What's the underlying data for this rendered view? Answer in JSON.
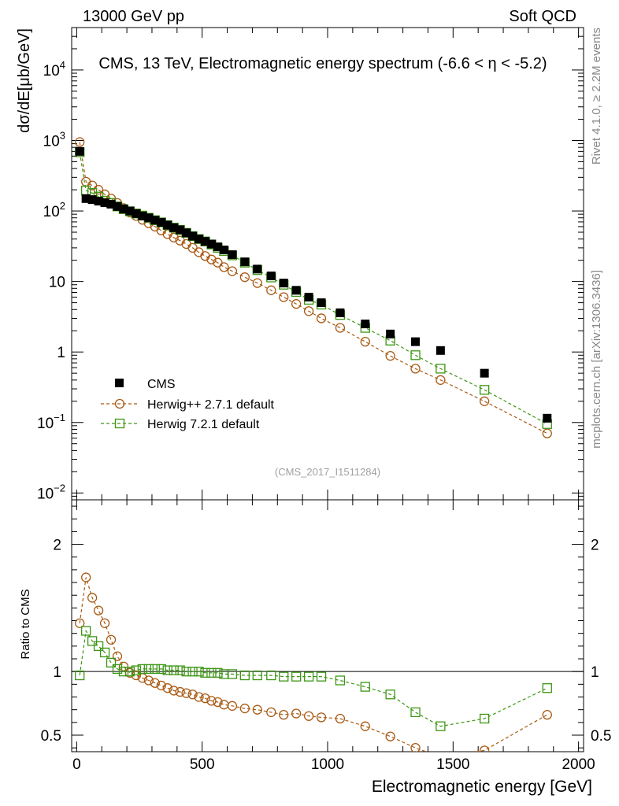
{
  "header": {
    "left": "13000 GeV pp",
    "right": "Soft QCD"
  },
  "side": {
    "top": "Rivet 4.1.0, ≥ 2.2M events",
    "bottom": "mcplots.cern.ch [arXiv:1306.3436]"
  },
  "colors": {
    "cms": "#000000",
    "herwigpp": "#a85a14",
    "herwig7": "#3c9614",
    "watermark": "#a0a0a0"
  },
  "chart_data": [
    {
      "type": "scatter",
      "title": "CMS, 13 TeV, Electromagnetic energy spectrum (-6.6 < η < -5.2)",
      "xlabel": "Electromagnetic energy [GeV]",
      "ylabel": "dσ/dE[μb/GeV]",
      "yscale": "log",
      "xlim": [
        -20,
        2020
      ],
      "ylim": [
        0.008,
        40000
      ],
      "xticks": [
        0,
        500,
        1000,
        1500,
        2000
      ],
      "yticks": [
        {
          "value": 10000,
          "base": "10",
          "exp": "4"
        },
        {
          "value": 1000,
          "base": "10",
          "exp": "3"
        },
        {
          "value": 100,
          "base": "10",
          "exp": "2"
        },
        {
          "value": 10,
          "base": "10",
          "exp": ""
        },
        {
          "value": 1,
          "base": "1",
          "exp": ""
        },
        {
          "value": 0.1,
          "base": "10",
          "exp": "−1"
        },
        {
          "value": 0.01,
          "base": "10",
          "exp": "−2"
        }
      ],
      "watermark": "(CMS_2017_I1511284)",
      "legend_position": "lower-left",
      "x": [
        12,
        37,
        62,
        87,
        112,
        137,
        162,
        187,
        212,
        237,
        262,
        287,
        312,
        337,
        362,
        387,
        412,
        437,
        462,
        487,
        512,
        537,
        562,
        587,
        620,
        670,
        720,
        775,
        825,
        875,
        925,
        975,
        1050,
        1150,
        1250,
        1350,
        1450,
        1625,
        1875
      ],
      "series": [
        {
          "name": "CMS",
          "marker": "filled-square",
          "values": [
            700,
            150,
            145,
            138,
            131,
            125,
            116,
            107,
            100,
            92,
            85,
            80,
            74,
            69,
            63,
            58,
            54,
            49,
            44,
            40,
            37,
            34,
            31,
            28,
            24,
            19,
            15,
            12,
            9.5,
            7.5,
            6.0,
            5.0,
            3.6,
            2.5,
            1.8,
            1.4,
            1.05,
            0.5,
            0.115
          ]
        },
        {
          "name": "Herwig++ 2.7.1 default",
          "marker": "open-circle",
          "values": [
            950,
            260,
            230,
            200,
            172,
            150,
            130,
            110,
            95,
            85,
            75,
            67,
            60,
            53,
            47,
            42,
            38,
            34,
            30,
            26,
            23,
            20.5,
            18.5,
            16,
            14,
            11.5,
            9.5,
            7.5,
            6.0,
            4.8,
            3.8,
            3.0,
            2.2,
            1.4,
            0.88,
            0.58,
            0.4,
            0.2,
            0.07
          ]
        },
        {
          "name": "Herwig 7.2.1 default",
          "marker": "open-square",
          "values": [
            680,
            195,
            180,
            160,
            140,
            130,
            116,
            106,
            99,
            92,
            86,
            80,
            74,
            69,
            63,
            58,
            54,
            49,
            44,
            40,
            37,
            33.5,
            30,
            27,
            23.5,
            18.5,
            14.5,
            11.4,
            9.0,
            7.1,
            5.5,
            4.7,
            3.35,
            2.2,
            1.45,
            0.9,
            0.58,
            0.29,
            0.095
          ]
        }
      ]
    },
    {
      "type": "scatter",
      "ylabel": "Ratio to CMS",
      "xlabel": "Electromagnetic energy [GeV]",
      "ylim": [
        0.37,
        2.35
      ],
      "xlim": [
        -20,
        2020
      ],
      "yticks": [
        0.5,
        1,
        2
      ],
      "ytick_labels": [
        "0.5",
        "1",
        "2"
      ],
      "reference_line": 1,
      "x": [
        12,
        37,
        62,
        87,
        112,
        137,
        162,
        187,
        212,
        237,
        262,
        287,
        312,
        337,
        362,
        387,
        412,
        437,
        462,
        487,
        512,
        537,
        562,
        587,
        620,
        670,
        720,
        775,
        825,
        875,
        925,
        975,
        1050,
        1150,
        1250,
        1350,
        1450,
        1625,
        1875
      ],
      "series": [
        {
          "name": "Herwig++ 2.7.1 default",
          "marker": "open-circle",
          "values": [
            1.38,
            1.74,
            1.58,
            1.48,
            1.38,
            1.25,
            1.12,
            1.04,
            0.99,
            0.97,
            0.95,
            0.93,
            0.91,
            0.89,
            0.87,
            0.85,
            0.84,
            0.83,
            0.82,
            0.8,
            0.79,
            0.77,
            0.76,
            0.74,
            0.73,
            0.71,
            0.7,
            0.68,
            0.66,
            0.67,
            0.65,
            0.64,
            0.63,
            0.57,
            0.49,
            0.4,
            0.33,
            0.38,
            0.66
          ]
        },
        {
          "name": "Herwig 7.2.1 default",
          "marker": "open-square",
          "values": [
            0.97,
            1.32,
            1.24,
            1.2,
            1.15,
            1.07,
            1.02,
            1.0,
            1.0,
            1.01,
            1.02,
            1.02,
            1.02,
            1.02,
            1.01,
            1.01,
            1.01,
            1.0,
            1.0,
            1.0,
            0.99,
            0.99,
            0.99,
            0.98,
            0.98,
            0.97,
            0.97,
            0.97,
            0.96,
            0.96,
            0.96,
            0.96,
            0.93,
            0.88,
            0.82,
            0.68,
            0.57,
            0.63,
            0.87
          ]
        }
      ]
    }
  ]
}
